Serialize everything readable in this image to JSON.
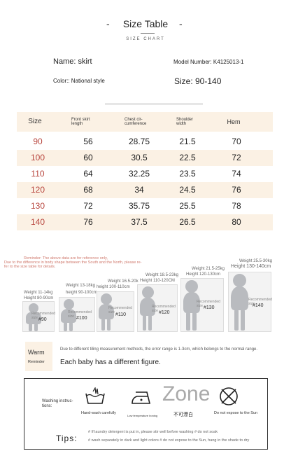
{
  "header": {
    "title": "Size Table",
    "subtitle": "SIZE CHART",
    "dash_left": "-",
    "dash_right": "-"
  },
  "product": {
    "name": "Name: skirt",
    "model": "Model Number: K4125013-1",
    "color": "Color:: National style",
    "size": "Size: 90-140"
  },
  "table": {
    "headers": {
      "size": "Size",
      "front": "Front skirt\nlength",
      "chest": "Chest cir-\ncumference",
      "shoulder": "Shoulder\nwidth",
      "hem": "Hem"
    },
    "rows": [
      {
        "size": "90",
        "front": "56",
        "chest": "28.75",
        "shoulder": "21.5",
        "hem": "70"
      },
      {
        "size": "100",
        "front": "60",
        "chest": "30.5",
        "shoulder": "22.5",
        "hem": "72"
      },
      {
        "size": "110",
        "front": "64",
        "chest": "32.25",
        "shoulder": "23.5",
        "hem": "74"
      },
      {
        "size": "120",
        "front": "68",
        "chest": "34",
        "shoulder": "24.5",
        "hem": "76"
      },
      {
        "size": "130",
        "front": "72",
        "chest": "35.75",
        "shoulder": "25.5",
        "hem": "78"
      },
      {
        "size": "140",
        "front": "76",
        "chest": "37.5",
        "shoulder": "26.5",
        "hem": "80"
      }
    ]
  },
  "notice": {
    "line1": "Reminder: The above data are for reference only,",
    "line2": "Due to the difference in body shape between the South and the North, please re-",
    "line3": "fer to the size table for details."
  },
  "kids": [
    {
      "weight": "Weight 11-14kg",
      "height": "Height 80-90cm",
      "rec": "Recommended size",
      "size": "#90"
    },
    {
      "weight": "Weight 13-18kg",
      "height": "height 90-100cm",
      "rec": "Recommended size",
      "size": "#100"
    },
    {
      "weight": "Weight 16.5-20k",
      "height": "height 100-110cm",
      "rec": "Recommended size",
      "size": "#110"
    },
    {
      "weight": "Weight 18.5-23kg",
      "height": "Height 110-120CM",
      "rec": "Recommended size",
      "size": "#120"
    },
    {
      "weight": "Weight 21.5-25kg",
      "height": "Height 120-130cm",
      "rec": "Recommended size",
      "size": "#130"
    },
    {
      "weight": "Weight 25.5-30kg",
      "height": "Height 130-140cm",
      "rec": "Recommended size",
      "size": "#140"
    }
  ],
  "warm": {
    "title": "Warm",
    "subtitle": "Reminder",
    "note": "Due to different tiling measurement methods, the error range is 1-3cm, which belongs to the normal range.",
    "figure_note": "Each baby has a different figure."
  },
  "washing": {
    "label": "Washing instruc-\ntions:",
    "hand_wash": "Hand-wash carefully",
    "iron": "Low temperature ironing",
    "zone": "Zone",
    "no_bleach": "不可漂白",
    "sun": "Do not expose to the Sun",
    "tips_label": "Tips:",
    "tip1": "# If laundry detergent is put in, please stir well before washing # do not soak",
    "tip2": "# wash separately in dark and light colors # do not expose to the Sun, hang in the shade to dry"
  }
}
